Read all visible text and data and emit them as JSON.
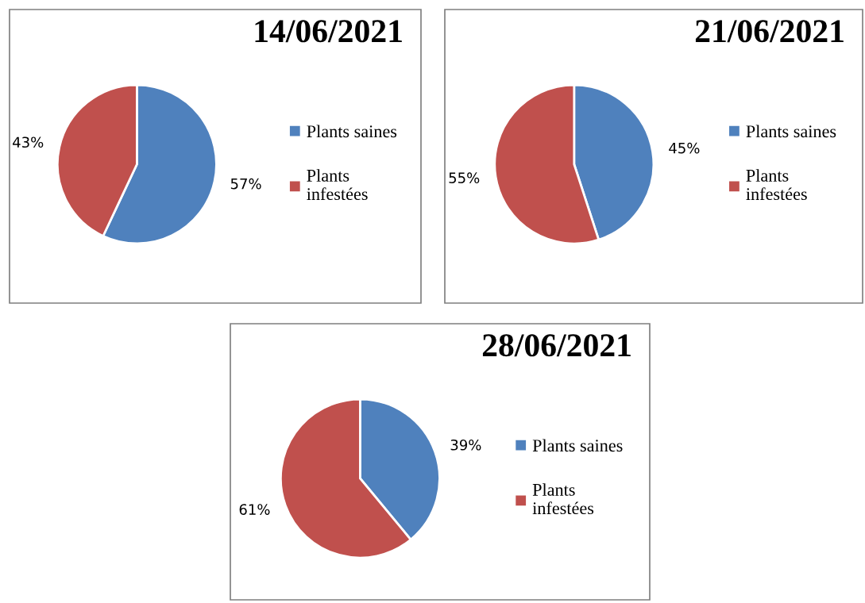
{
  "chart_data": [
    {
      "type": "pie",
      "title": "14/06/2021",
      "categories": [
        "Plants saines",
        "Plants infestées"
      ],
      "values": [
        57,
        43
      ],
      "value_labels": [
        "57%",
        "43%"
      ],
      "colors": [
        "#4f81bd",
        "#c0504d"
      ],
      "legend": "right"
    },
    {
      "type": "pie",
      "title": "21/06/2021",
      "categories": [
        "Plants saines",
        "Plants infestées"
      ],
      "values": [
        45,
        55
      ],
      "value_labels": [
        "45%",
        "55%"
      ],
      "colors": [
        "#4f81bd",
        "#c0504d"
      ],
      "legend": "right"
    },
    {
      "type": "pie",
      "title": "28/06/2021",
      "categories": [
        "Plants saines",
        "Plants infestées"
      ],
      "values": [
        39,
        61
      ],
      "value_labels": [
        "39%",
        "61%"
      ],
      "colors": [
        "#4f81bd",
        "#c0504d"
      ],
      "legend": "right"
    }
  ]
}
